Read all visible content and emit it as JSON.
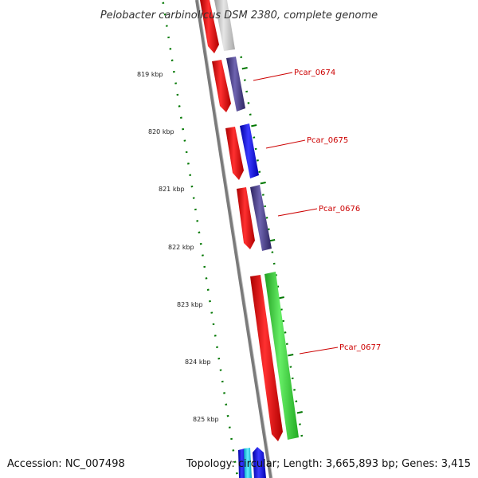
{
  "title": "Pelobacter carbinolicus DSM 2380, complete genome",
  "accession": "Accession: NC_007498",
  "summary": "Topology: circular; Length: 3,665,893 bp; Genes: 3,415",
  "ticks": [
    "819 kbp",
    "820 kbp",
    "821 kbp",
    "822 kbp",
    "823 kbp",
    "824 kbp",
    "825 kbp"
  ],
  "genes": [
    {
      "name": "Pcar_0674"
    },
    {
      "name": "Pcar_0675"
    },
    {
      "name": "Pcar_0676"
    },
    {
      "name": "Pcar_0677"
    }
  ],
  "colors": {
    "cds": "#ff0000",
    "purple": "#4a3f8a",
    "blue": "#0000ff",
    "green": "#33cc33",
    "grey": "#c0c0c0",
    "backbone": "#808080",
    "ticks": "#007700",
    "label": "#cc0000"
  }
}
